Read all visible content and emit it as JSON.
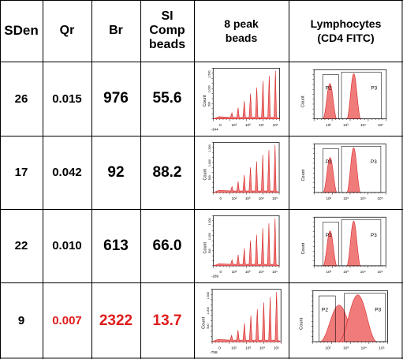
{
  "table": {
    "headers": {
      "sden": "SDen",
      "qr": "Qr",
      "br": "Br",
      "si": "SI\nComp\nbeads",
      "peak": "8 peak\nbeads",
      "lymph": "Lymphocytes\n(CD4 FITC)"
    },
    "rows": [
      {
        "sden": "26",
        "qr": "0.015",
        "br": "976",
        "si": "55.6",
        "highlight": false,
        "bead_min_label": "-344",
        "lymph_title": "..."
      },
      {
        "sden": "17",
        "qr": "0.042",
        "br": "92",
        "si": "88.2",
        "highlight": false,
        "bead_min_label": "",
        "lymph_title": ""
      },
      {
        "sden": "22",
        "qr": "0.010",
        "br": "613",
        "si": "66.0",
        "highlight": false,
        "bead_min_label": "-289",
        "lymph_title": ""
      },
      {
        "sden": "9",
        "qr": "0.007",
        "br": "2322",
        "si": "13.7",
        "highlight": true,
        "bead_min_label": "-758",
        "lymph_title": ""
      }
    ],
    "highlight_color": "#e01b1b",
    "plot_fill_color": "#f07b7b",
    "plot_stroke_color": "#d42020"
  },
  "plot_labels": {
    "count": "Count",
    "gate_p2": "P2",
    "gate_p3": "P3",
    "tick_zero": "0",
    "tick_2": "10²",
    "tick_3": "10³",
    "tick_4": "10⁴",
    "tick_5": "10⁵",
    "y_500": "500",
    "y_1000": "1,000",
    "y_1500": "1,500",
    "y_250": "250",
    "y_750": "750"
  }
}
